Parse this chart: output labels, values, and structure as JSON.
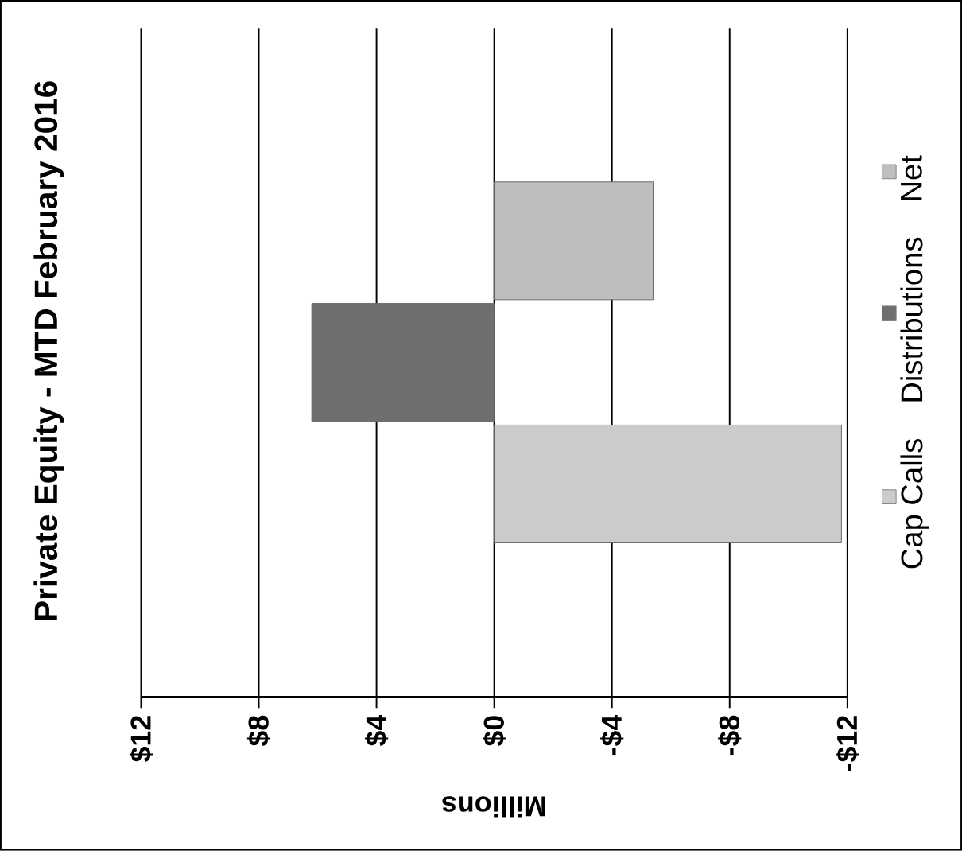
{
  "chart_data": {
    "type": "bar",
    "orientation": "horizontal",
    "title": "Private Equity - MTD February 2016",
    "xlabel": "Millions",
    "categories": [
      null
    ],
    "series": [
      {
        "name": "Cap Calls",
        "color": "#cbcbcb",
        "values": [
          -11.8
        ]
      },
      {
        "name": "Distributions",
        "color": "#6f6f6f",
        "values": [
          6.2
        ]
      },
      {
        "name": "Net",
        "color": "#bebebe",
        "values": [
          -5.4
        ]
      }
    ],
    "xlim": [
      12,
      -12
    ],
    "xticks": [
      {
        "value": 12,
        "label": "$12"
      },
      {
        "value": 8,
        "label": "$8"
      },
      {
        "value": 4,
        "label": "$4"
      },
      {
        "value": 0,
        "label": "$0"
      },
      {
        "value": -4,
        "label": "-$4"
      },
      {
        "value": -8,
        "label": "-$8"
      },
      {
        "value": -12,
        "label": "-$12"
      }
    ],
    "grid": "x",
    "legend": "right"
  }
}
